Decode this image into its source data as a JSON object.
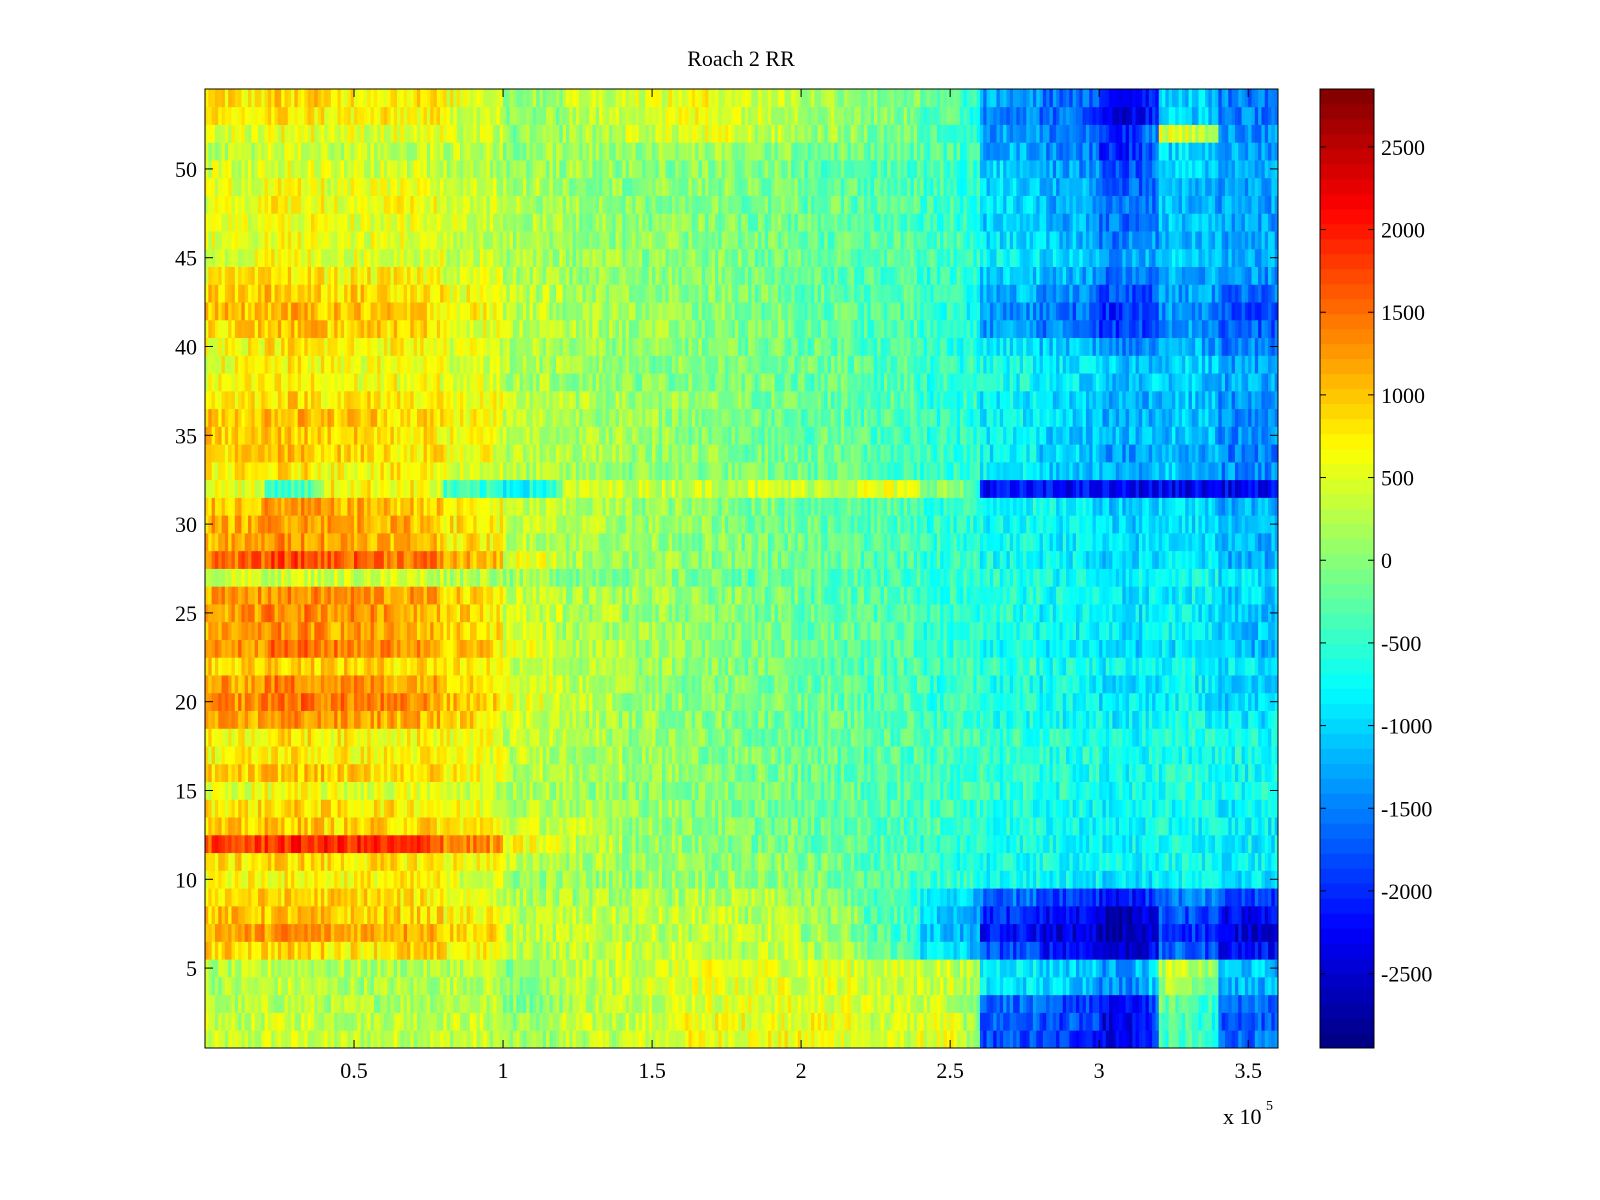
{
  "chart_data": {
    "type": "heatmap",
    "title": "Roach 2 RR",
    "xlabel": "",
    "ylabel": "",
    "x_exponent_label": "x 10",
    "x_exponent_power": "5",
    "xlim": [
      0,
      360000
    ],
    "ylim": [
      0.5,
      54.5
    ],
    "x_ticks": [
      {
        "value": 50000,
        "label": "0.5"
      },
      {
        "value": 100000,
        "label": "1"
      },
      {
        "value": 150000,
        "label": "1.5"
      },
      {
        "value": 200000,
        "label": "2"
      },
      {
        "value": 250000,
        "label": "2.5"
      },
      {
        "value": 300000,
        "label": "3"
      },
      {
        "value": 350000,
        "label": "3.5"
      }
    ],
    "y_ticks": [
      {
        "value": 5,
        "label": "5"
      },
      {
        "value": 10,
        "label": "10"
      },
      {
        "value": 15,
        "label": "15"
      },
      {
        "value": 20,
        "label": "20"
      },
      {
        "value": 25,
        "label": "25"
      },
      {
        "value": 30,
        "label": "30"
      },
      {
        "value": 35,
        "label": "35"
      },
      {
        "value": 40,
        "label": "40"
      },
      {
        "value": 45,
        "label": "45"
      },
      {
        "value": 50,
        "label": "50"
      }
    ],
    "colorbar": {
      "colormap": "jet",
      "clim": [
        -2950,
        2850
      ],
      "ticks": [
        {
          "value": 2500,
          "label": "2500"
        },
        {
          "value": 2000,
          "label": "2000"
        },
        {
          "value": 1500,
          "label": "1500"
        },
        {
          "value": 1000,
          "label": "1000"
        },
        {
          "value": 500,
          "label": "500"
        },
        {
          "value": 0,
          "label": "0"
        },
        {
          "value": -500,
          "label": "-500"
        },
        {
          "value": -1000,
          "label": "-1000"
        },
        {
          "value": -1500,
          "label": "-1500"
        },
        {
          "value": -2000,
          "label": "-2000"
        },
        {
          "value": -2500,
          "label": "-2500"
        }
      ]
    },
    "rows": 54,
    "x_segments": [
      0,
      20000,
      40000,
      60000,
      80000,
      100000,
      120000,
      140000,
      160000,
      180000,
      200000,
      220000,
      240000,
      260000,
      280000,
      300000,
      320000,
      340000,
      360000
    ],
    "approx_segment_values": [
      [
        300,
        400,
        300,
        350,
        350,
        100,
        300,
        400,
        600,
        600,
        600,
        400,
        500,
        -1800,
        -1900,
        -2300,
        -400,
        -1600
      ],
      [
        300,
        400,
        300,
        350,
        350,
        100,
        300,
        400,
        600,
        600,
        600,
        400,
        500,
        -1700,
        -1800,
        -2400,
        -400,
        -1700
      ],
      [
        200,
        300,
        200,
        250,
        300,
        0,
        300,
        400,
        500,
        500,
        500,
        400,
        400,
        -1600,
        -1800,
        -2300,
        -200,
        -1600
      ],
      [
        200,
        300,
        200,
        200,
        300,
        0,
        300,
        400,
        500,
        500,
        500,
        400,
        400,
        -900,
        -1000,
        -1400,
        200,
        -1200
      ],
      [
        200,
        300,
        200,
        200,
        300,
        0,
        300,
        400,
        500,
        500,
        500,
        400,
        400,
        -800,
        -1000,
        -1300,
        300,
        -1100
      ],
      [
        900,
        900,
        800,
        900,
        700,
        300,
        300,
        400,
        400,
        300,
        200,
        -200,
        -900,
        -1800,
        -2100,
        -2500,
        -1700,
        -2200
      ],
      [
        1200,
        1300,
        1200,
        1200,
        900,
        300,
        300,
        300,
        300,
        300,
        100,
        -300,
        -1100,
        -2200,
        -2400,
        -2700,
        -1900,
        -2400
      ],
      [
        1000,
        1000,
        900,
        900,
        700,
        300,
        300,
        300,
        300,
        200,
        100,
        -300,
        -1000,
        -2000,
        -2200,
        -2600,
        -1800,
        -2300
      ],
      [
        900,
        900,
        900,
        800,
        600,
        200,
        200,
        200,
        200,
        200,
        0,
        -400,
        -900,
        -1600,
        -1800,
        -2100,
        -1500,
        -1900
      ],
      [
        700,
        700,
        700,
        700,
        500,
        100,
        100,
        100,
        100,
        0,
        -100,
        -300,
        -500,
        -700,
        -800,
        -900,
        -800,
        -900
      ],
      [
        800,
        900,
        800,
        800,
        700,
        300,
        200,
        100,
        0,
        0,
        -100,
        -300,
        -500,
        -700,
        -700,
        -800,
        -700,
        -800
      ],
      [
        1700,
        1900,
        1900,
        1800,
        1400,
        600,
        300,
        100,
        0,
        -100,
        -200,
        -300,
        -500,
        -600,
        -700,
        -800,
        -700,
        -800
      ],
      [
        900,
        1000,
        900,
        900,
        800,
        400,
        300,
        100,
        0,
        -100,
        -200,
        -300,
        -400,
        -600,
        -700,
        -800,
        -700,
        -800
      ],
      [
        800,
        900,
        800,
        800,
        600,
        300,
        200,
        100,
        0,
        -100,
        -200,
        -300,
        -400,
        -600,
        -700,
        -800,
        -700,
        -800
      ],
      [
        500,
        600,
        500,
        500,
        400,
        200,
        100,
        0,
        0,
        -100,
        -200,
        -300,
        -400,
        -500,
        -600,
        -700,
        -600,
        -700
      ],
      [
        900,
        1000,
        900,
        900,
        700,
        300,
        200,
        100,
        0,
        -100,
        -200,
        -300,
        -400,
        -500,
        -600,
        -700,
        -600,
        -700
      ],
      [
        700,
        800,
        700,
        700,
        600,
        300,
        200,
        100,
        0,
        -100,
        -200,
        -300,
        -400,
        -500,
        -600,
        -700,
        -600,
        -700
      ],
      [
        700,
        800,
        700,
        700,
        600,
        300,
        200,
        100,
        0,
        -100,
        -200,
        -300,
        -400,
        -500,
        -600,
        -700,
        -600,
        -700
      ],
      [
        1100,
        1300,
        1200,
        1100,
        900,
        400,
        200,
        100,
        0,
        -100,
        -200,
        -300,
        -400,
        -600,
        -700,
        -800,
        -700,
        -900
      ],
      [
        1300,
        1500,
        1400,
        1300,
        1000,
        500,
        300,
        100,
        0,
        -100,
        -200,
        -300,
        -500,
        -600,
        -700,
        -900,
        -800,
        -1000
      ],
      [
        1200,
        1400,
        1300,
        1200,
        1000,
        500,
        300,
        100,
        0,
        -100,
        -200,
        -300,
        -500,
        -600,
        -700,
        -900,
        -800,
        -1000
      ],
      [
        900,
        1000,
        900,
        900,
        800,
        400,
        200,
        100,
        0,
        -100,
        -200,
        -300,
        -400,
        -500,
        -700,
        -800,
        -700,
        -900
      ],
      [
        1300,
        1500,
        1400,
        1300,
        1000,
        500,
        300,
        100,
        0,
        -100,
        -200,
        -300,
        -500,
        -700,
        -800,
        -1000,
        -900,
        -1200
      ],
      [
        1100,
        1300,
        1200,
        1100,
        900,
        400,
        200,
        100,
        0,
        -100,
        -200,
        -300,
        -500,
        -600,
        -800,
        -900,
        -800,
        -1100
      ],
      [
        1200,
        1400,
        1300,
        1200,
        900,
        400,
        200,
        100,
        0,
        -100,
        -200,
        -300,
        -500,
        -600,
        -800,
        -900,
        -800,
        -1100
      ],
      [
        1200,
        1300,
        1300,
        1200,
        900,
        400,
        200,
        100,
        0,
        -100,
        -200,
        -300,
        -500,
        -600,
        -700,
        -900,
        -800,
        -1000
      ],
      [
        400,
        400,
        400,
        400,
        300,
        100,
        0,
        0,
        -100,
        -200,
        -300,
        -400,
        -500,
        -600,
        -700,
        -800,
        -700,
        -900
      ],
      [
        1500,
        1700,
        1600,
        1500,
        1100,
        500,
        200,
        100,
        0,
        -100,
        -200,
        -300,
        -500,
        -700,
        -800,
        -1000,
        -900,
        -1200
      ],
      [
        1100,
        1300,
        1200,
        1100,
        800,
        300,
        200,
        100,
        0,
        -100,
        -200,
        -300,
        -500,
        -700,
        -800,
        -1000,
        -900,
        -1200
      ],
      [
        1100,
        1300,
        1200,
        1100,
        800,
        300,
        200,
        100,
        0,
        -100,
        -200,
        -300,
        -500,
        -700,
        -800,
        -1000,
        -900,
        -1200
      ],
      [
        1000,
        1200,
        1100,
        1000,
        700,
        300,
        200,
        100,
        0,
        -100,
        -200,
        -300,
        -500,
        -700,
        -800,
        -1000,
        -900,
        -1200
      ],
      [
        600,
        -400,
        700,
        700,
        -500,
        -700,
        400,
        400,
        400,
        400,
        400,
        500,
        100,
        -2200,
        -2200,
        -2300,
        -2300,
        -2300
      ],
      [
        700,
        800,
        700,
        700,
        500,
        200,
        100,
        0,
        0,
        -100,
        -200,
        -300,
        -500,
        -800,
        -1000,
        -1200,
        -1100,
        -1400
      ],
      [
        900,
        1000,
        900,
        800,
        600,
        300,
        200,
        100,
        0,
        -100,
        -200,
        -300,
        -500,
        -800,
        -1000,
        -1300,
        -1200,
        -1500
      ],
      [
        900,
        1000,
        900,
        800,
        600,
        300,
        200,
        100,
        0,
        -100,
        -200,
        -300,
        -500,
        -800,
        -1000,
        -1200,
        -1100,
        -1400
      ],
      [
        1000,
        1100,
        1000,
        900,
        700,
        300,
        200,
        100,
        0,
        -100,
        -200,
        -300,
        -500,
        -800,
        -1000,
        -1200,
        -1100,
        -1400
      ],
      [
        800,
        900,
        800,
        800,
        600,
        300,
        200,
        100,
        0,
        -100,
        -200,
        -300,
        -500,
        -800,
        -1000,
        -1200,
        -1100,
        -1400
      ],
      [
        600,
        700,
        600,
        600,
        500,
        200,
        100,
        0,
        0,
        -100,
        -200,
        -300,
        -500,
        -700,
        -900,
        -1100,
        -1000,
        -1300
      ],
      [
        600,
        700,
        600,
        600,
        500,
        200,
        100,
        0,
        0,
        -100,
        -200,
        -300,
        -500,
        -700,
        -900,
        -1100,
        -1000,
        -1300
      ],
      [
        700,
        800,
        700,
        700,
        500,
        200,
        100,
        0,
        0,
        -100,
        -200,
        -300,
        -500,
        -900,
        -1100,
        -1500,
        -1200,
        -1500
      ],
      [
        900,
        1000,
        900,
        900,
        600,
        300,
        200,
        100,
        0,
        -100,
        -200,
        -300,
        -500,
        -1300,
        -1500,
        -1900,
        -1300,
        -1700
      ],
      [
        1000,
        1100,
        1000,
        900,
        700,
        300,
        200,
        100,
        0,
        -100,
        -200,
        -300,
        -500,
        -1400,
        -1600,
        -2000,
        -1400,
        -1800
      ],
      [
        900,
        1000,
        900,
        900,
        600,
        300,
        200,
        100,
        0,
        -100,
        -200,
        -300,
        -500,
        -1200,
        -1400,
        -1800,
        -1300,
        -1600
      ],
      [
        700,
        800,
        700,
        700,
        500,
        200,
        100,
        0,
        0,
        -100,
        -200,
        -300,
        -500,
        -1000,
        -1200,
        -1600,
        -1200,
        -1400
      ],
      [
        500,
        600,
        500,
        500,
        400,
        200,
        100,
        0,
        0,
        -100,
        -200,
        -300,
        -400,
        -800,
        -1000,
        -1300,
        -1000,
        -1200
      ],
      [
        500,
        600,
        500,
        500,
        400,
        200,
        100,
        0,
        0,
        -100,
        -200,
        -300,
        -400,
        -900,
        -1100,
        -1500,
        -1100,
        -1300
      ],
      [
        500,
        600,
        500,
        500,
        400,
        200,
        100,
        0,
        0,
        -100,
        -200,
        -300,
        -400,
        -1000,
        -1200,
        -1600,
        -1100,
        -1300
      ],
      [
        600,
        700,
        600,
        600,
        400,
        200,
        100,
        0,
        0,
        -100,
        -200,
        -300,
        -400,
        -1000,
        -1200,
        -1600,
        -1100,
        -1300
      ],
      [
        500,
        600,
        500,
        500,
        400,
        200,
        100,
        0,
        0,
        -100,
        -200,
        -300,
        -400,
        -1000,
        -1200,
        -1700,
        -1100,
        -1300
      ],
      [
        400,
        500,
        400,
        400,
        300,
        100,
        100,
        0,
        0,
        -100,
        -200,
        -300,
        -400,
        -1000,
        -1300,
        -1800,
        -1000,
        -1200
      ],
      [
        300,
        400,
        300,
        300,
        300,
        100,
        100,
        100,
        100,
        0,
        -100,
        -200,
        -300,
        -1200,
        -1400,
        -2000,
        -1000,
        -1300
      ],
      [
        500,
        600,
        500,
        500,
        400,
        0,
        200,
        400,
        500,
        300,
        100,
        -100,
        -300,
        -1300,
        -1500,
        -2100,
        500,
        -1400
      ],
      [
        700,
        800,
        700,
        700,
        500,
        0,
        300,
        500,
        600,
        400,
        200,
        0,
        -300,
        -1400,
        -1600,
        -2400,
        -1000,
        -1500
      ],
      [
        800,
        900,
        800,
        800,
        600,
        100,
        400,
        500,
        600,
        400,
        200,
        0,
        -300,
        -1300,
        -1600,
        -2200,
        -1000,
        -1500
      ]
    ]
  }
}
